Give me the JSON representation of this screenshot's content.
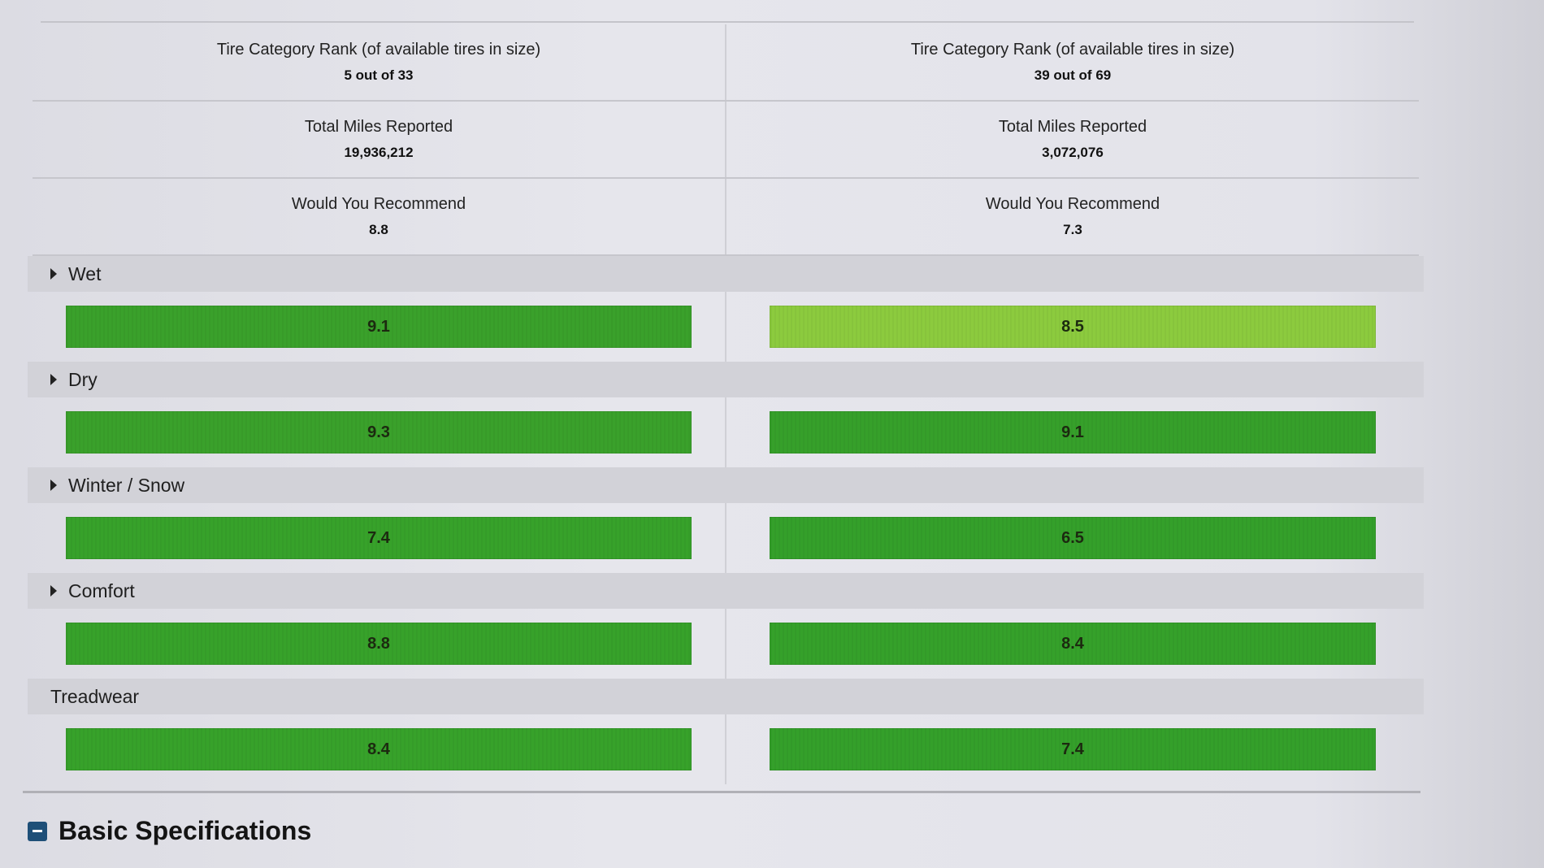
{
  "stats": [
    {
      "label": "Tire Category Rank (of available tires in size)",
      "left": "5 out of 33",
      "right": "39 out of 69"
    },
    {
      "label": "Total Miles Reported",
      "left": "19,936,212",
      "right": "3,072,076"
    },
    {
      "label": "Would You Recommend",
      "left": "8.8",
      "right": "7.3"
    }
  ],
  "categories": [
    {
      "label": "Wet",
      "expandable": true,
      "left": {
        "value": "9.1",
        "color": "#3aa12b"
      },
      "right": {
        "value": "8.5",
        "color": "#8ccb3e"
      }
    },
    {
      "label": "Dry",
      "expandable": true,
      "left": {
        "value": "9.3",
        "color": "#3aa12b"
      },
      "right": {
        "value": "9.1",
        "color": "#36a02a"
      }
    },
    {
      "label": "Winter / Snow",
      "expandable": true,
      "left": {
        "value": "7.4",
        "color": "#37a22a"
      },
      "right": {
        "value": "6.5",
        "color": "#34a02a"
      }
    },
    {
      "label": "Comfort",
      "expandable": true,
      "left": {
        "value": "8.8",
        "color": "#37a22a"
      },
      "right": {
        "value": "8.4",
        "color": "#35a12a"
      }
    },
    {
      "label": "Treadwear",
      "expandable": false,
      "left": {
        "value": "8.4",
        "color": "#37a22a"
      },
      "right": {
        "value": "7.4",
        "color": "#34a02a"
      }
    }
  ],
  "section": {
    "title": "Basic Specifications",
    "icon": "collapse-minus-icon",
    "accent": "#1e4f78"
  }
}
